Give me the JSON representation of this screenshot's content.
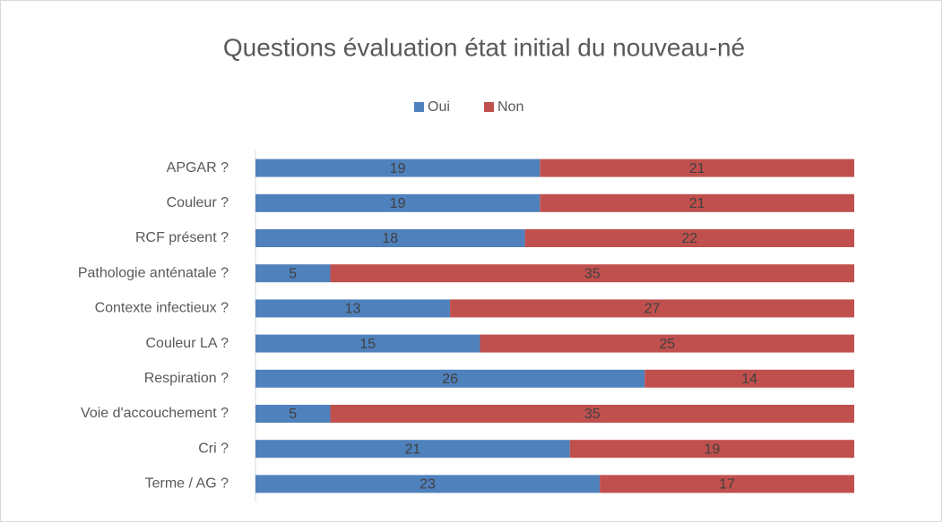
{
  "chart_data": {
    "type": "stacked-bar-horizontal",
    "title": "Questions évaluation état initial du nouveau-né",
    "categories": [
      "APGAR ?",
      "Couleur ?",
      "RCF présent ?",
      "Pathologie anténatale ?",
      "Contexte infectieux ?",
      "Couleur LA ?",
      "Respiration ?",
      "Voie d'accouchement ?",
      "Cri ?",
      "Terme / AG ?"
    ],
    "series": [
      {
        "name": "Oui",
        "color": "#4f81bd",
        "values": [
          19,
          19,
          18,
          5,
          13,
          15,
          26,
          5,
          21,
          23
        ]
      },
      {
        "name": "Non",
        "color": "#c0504d",
        "values": [
          21,
          21,
          22,
          35,
          27,
          25,
          14,
          35,
          19,
          17
        ]
      }
    ],
    "xlim": [
      0,
      40
    ],
    "legend": "top"
  }
}
